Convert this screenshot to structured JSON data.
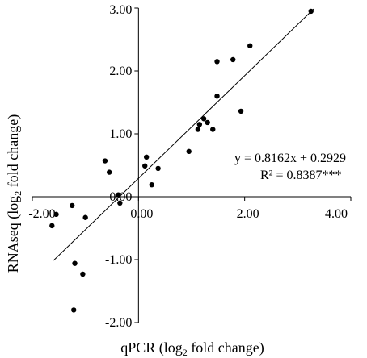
{
  "chart_data": {
    "type": "scatter",
    "xlim": [
      -2.0,
      4.0
    ],
    "ylim": [
      -2.0,
      3.0
    ],
    "x_ticks": [
      -2.0,
      0.0,
      2.0,
      4.0
    ],
    "y_ticks": [
      -2.0,
      -1.0,
      0.0,
      1.0,
      2.0,
      3.0
    ],
    "x_tick_labels": [
      "-2.00",
      "0.00",
      "2.00",
      "4.00"
    ],
    "y_tick_labels": [
      "-2.00",
      "-1.00",
      "0.00",
      "1.00",
      "2.00",
      "3.00"
    ],
    "xlabel": {
      "main": "qPCR (log",
      "sub": "2",
      "tail": " fold change)"
    },
    "ylabel": {
      "main": "RNAseq (log",
      "sub": "2",
      "tail": " fold change)"
    },
    "equation": "y = 0.8162x + 0.2929",
    "r_squared": "R² = 0.8387***",
    "trendline": {
      "slope": 0.8162,
      "intercept": 0.2929,
      "x_start": -1.6,
      "x_end": 3.3
    },
    "grid": false,
    "points": [
      {
        "x": 3.25,
        "y": 2.95
      },
      {
        "x": 2.1,
        "y": 2.4
      },
      {
        "x": 1.78,
        "y": 2.18
      },
      {
        "x": 1.48,
        "y": 2.15
      },
      {
        "x": 1.48,
        "y": 1.6
      },
      {
        "x": 1.93,
        "y": 1.36
      },
      {
        "x": 1.23,
        "y": 1.24
      },
      {
        "x": 1.3,
        "y": 1.18
      },
      {
        "x": 1.15,
        "y": 1.15
      },
      {
        "x": 1.4,
        "y": 1.07
      },
      {
        "x": 1.12,
        "y": 1.07
      },
      {
        "x": 0.95,
        "y": 0.72
      },
      {
        "x": 0.15,
        "y": 0.63
      },
      {
        "x": 0.12,
        "y": 0.49
      },
      {
        "x": 0.37,
        "y": 0.45
      },
      {
        "x": 0.25,
        "y": 0.19
      },
      {
        "x": -0.63,
        "y": 0.57
      },
      {
        "x": -0.55,
        "y": 0.39
      },
      {
        "x": -0.38,
        "y": 0.03
      },
      {
        "x": -0.35,
        "y": -0.1
      },
      {
        "x": -1.25,
        "y": -0.14
      },
      {
        "x": -1.55,
        "y": -0.28
      },
      {
        "x": -1.0,
        "y": -0.33
      },
      {
        "x": -1.63,
        "y": -0.46
      },
      {
        "x": -1.2,
        "y": -1.06
      },
      {
        "x": -1.05,
        "y": -1.23
      },
      {
        "x": -1.22,
        "y": -1.8
      }
    ]
  }
}
